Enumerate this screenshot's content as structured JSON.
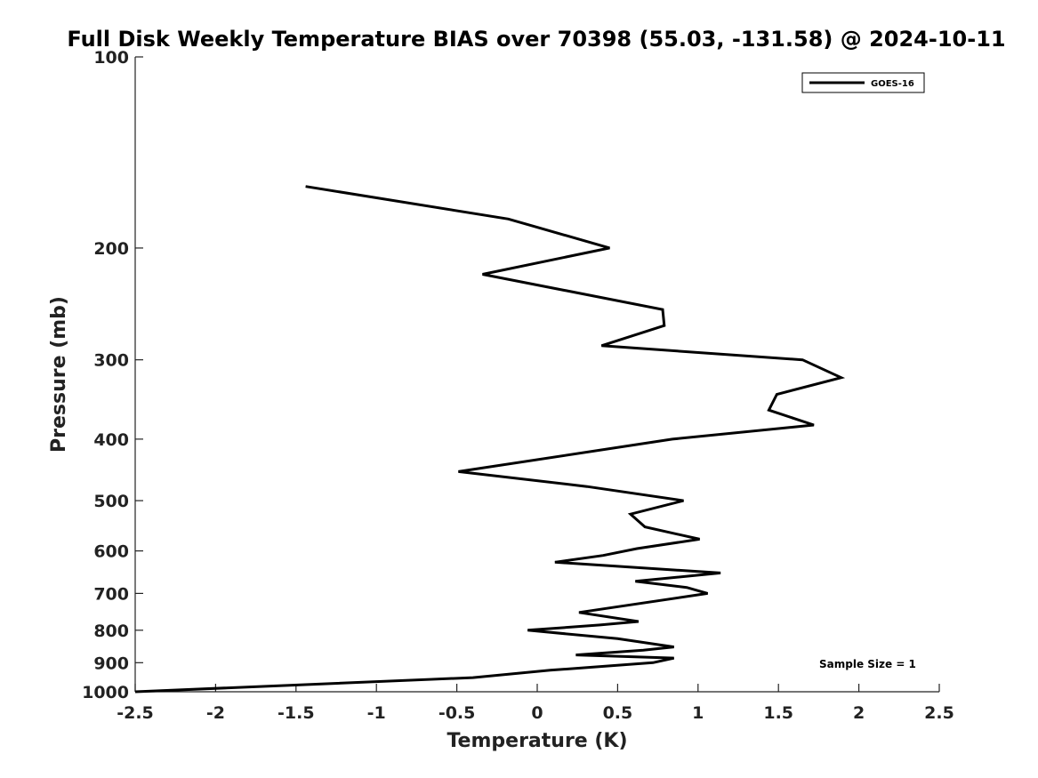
{
  "chart_data": {
    "type": "line",
    "title": "Full Disk Weekly Temperature BIAS over 70398 (55.03, -131.58) @ 2024-10-11",
    "xlabel": "Temperature (K)",
    "ylabel": "Pressure (mb)",
    "xlim": [
      -2.5,
      2.5
    ],
    "ylim": [
      100,
      1000
    ],
    "y_scale": "log",
    "y_reversed": true,
    "x_ticks": [
      -2.5,
      -2,
      -1.5,
      -1,
      -0.5,
      0,
      0.5,
      1,
      1.5,
      2,
      2.5
    ],
    "x_tick_labels": [
      "-2.5",
      "-2",
      "-1.5",
      "-1",
      "-0.5",
      "0",
      "0.5",
      "1",
      "1.5",
      "2",
      "2.5"
    ],
    "y_ticks": [
      100,
      200,
      300,
      400,
      500,
      600,
      700,
      800,
      900,
      1000
    ],
    "y_tick_labels": [
      "100",
      "200",
      "300",
      "400",
      "500",
      "600",
      "700",
      "800",
      "900",
      "1000"
    ],
    "grid": false,
    "legend_position": "top-right",
    "annotation": "Sample Size = 1",
    "series": [
      {
        "name": "GOES-16",
        "color": "#000000",
        "points": [
          {
            "x": -1.44,
            "y": 160
          },
          {
            "x": -0.18,
            "y": 180
          },
          {
            "x": 0.45,
            "y": 200
          },
          {
            "x": -0.34,
            "y": 220
          },
          {
            "x": 0.78,
            "y": 250
          },
          {
            "x": 0.79,
            "y": 265
          },
          {
            "x": 0.4,
            "y": 285
          },
          {
            "x": 1.65,
            "y": 300
          },
          {
            "x": 1.89,
            "y": 320
          },
          {
            "x": 1.49,
            "y": 340
          },
          {
            "x": 1.44,
            "y": 360
          },
          {
            "x": 1.72,
            "y": 380
          },
          {
            "x": 0.84,
            "y": 400
          },
          {
            "x": -0.49,
            "y": 450
          },
          {
            "x": 0.31,
            "y": 475
          },
          {
            "x": 0.91,
            "y": 500
          },
          {
            "x": 0.58,
            "y": 525
          },
          {
            "x": 0.67,
            "y": 550
          },
          {
            "x": 1.01,
            "y": 575
          },
          {
            "x": 0.62,
            "y": 595
          },
          {
            "x": 0.41,
            "y": 610
          },
          {
            "x": 0.11,
            "y": 625
          },
          {
            "x": 1.14,
            "y": 650
          },
          {
            "x": 0.61,
            "y": 670
          },
          {
            "x": 0.93,
            "y": 685
          },
          {
            "x": 1.06,
            "y": 700
          },
          {
            "x": 0.26,
            "y": 750
          },
          {
            "x": 0.63,
            "y": 775
          },
          {
            "x": 0.39,
            "y": 785
          },
          {
            "x": -0.06,
            "y": 800
          },
          {
            "x": 0.5,
            "y": 825
          },
          {
            "x": 0.85,
            "y": 850
          },
          {
            "x": 0.66,
            "y": 860
          },
          {
            "x": 0.24,
            "y": 875
          },
          {
            "x": 0.85,
            "y": 885
          },
          {
            "x": 0.72,
            "y": 900
          },
          {
            "x": 0.08,
            "y": 925
          },
          {
            "x": -0.4,
            "y": 950
          },
          {
            "x": -2.5,
            "y": 1000
          }
        ]
      }
    ]
  }
}
